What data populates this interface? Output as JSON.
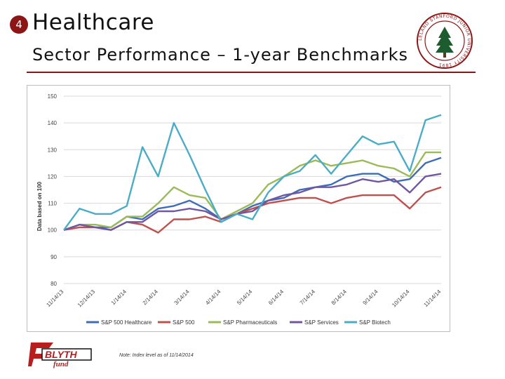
{
  "slide": {
    "number": "4",
    "title": "Healthcare",
    "subtitle": "Sector Performance – 1-year Benchmarks",
    "note": "Note: Index level as of 11/14/2014",
    "logo_text": "BLYTH fund",
    "seal_text": "LELAND STANFORD JUNIOR UNIVERSITY 1891",
    "accent_color": "#8c1515"
  },
  "chart_data": {
    "type": "line",
    "title": "",
    "xlabel": "",
    "ylabel": "Data based on 100",
    "ylim": [
      80,
      150
    ],
    "yticks": [
      80,
      90,
      100,
      110,
      120,
      130,
      140,
      150
    ],
    "grid": true,
    "legend_position": "bottom",
    "x": [
      "11/14/13",
      "11/28/13",
      "12/14/13",
      "12/28/13",
      "1/14/14",
      "1/28/14",
      "2/14/14",
      "2/28/14",
      "3/14/14",
      "3/28/14",
      "4/14/14",
      "4/28/14",
      "5/14/14",
      "5/28/14",
      "6/14/14",
      "6/28/14",
      "7/14/14",
      "7/28/14",
      "8/14/14",
      "8/28/14",
      "9/14/14",
      "9/28/14",
      "10/14/14",
      "10/28/14",
      "11/14/14"
    ],
    "xtick_labels": [
      "11/14/13",
      "12/14/13",
      "1/14/14",
      "2/14/14",
      "3/14/14",
      "4/14/14",
      "5/14/14",
      "6/14/14",
      "7/14/14",
      "8/14/14",
      "9/14/14",
      "10/14/14",
      "11/14/14"
    ],
    "series": [
      {
        "name": "S&P 500 Healthcare",
        "color": "#3e6db5",
        "values": [
          100,
          102,
          101,
          101,
          105,
          104,
          108,
          109,
          111,
          108,
          104,
          106,
          109,
          111,
          112,
          115,
          116,
          117,
          120,
          121,
          121,
          118,
          119,
          125,
          127
        ]
      },
      {
        "name": "S&P 500",
        "color": "#c0504d",
        "values": [
          100,
          101,
          101,
          100,
          103,
          102,
          99,
          104,
          104,
          105,
          103,
          106,
          108,
          110,
          111,
          112,
          112,
          110,
          112,
          113,
          113,
          113,
          108,
          114,
          116
        ]
      },
      {
        "name": "S&P Pharmaceuticals",
        "color": "#9bbb59",
        "values": [
          100,
          102,
          102,
          101,
          105,
          105,
          110,
          116,
          113,
          112,
          104,
          107,
          110,
          117,
          120,
          124,
          126,
          124,
          125,
          126,
          124,
          123,
          120,
          129,
          129
        ]
      },
      {
        "name": "S&P Services",
        "color": "#7057a0",
        "values": [
          100,
          102,
          101,
          100,
          103,
          103,
          107,
          107,
          108,
          107,
          104,
          106,
          107,
          111,
          113,
          114,
          116,
          116,
          117,
          119,
          118,
          119,
          114,
          120,
          121
        ]
      },
      {
        "name": "S&P Biotech",
        "color": "#4bacc6",
        "values": [
          100,
          108,
          106,
          106,
          109,
          131,
          120,
          140,
          128,
          115,
          103,
          106,
          104,
          114,
          120,
          122,
          128,
          121,
          128,
          135,
          132,
          133,
          122,
          141,
          143
        ]
      }
    ]
  }
}
